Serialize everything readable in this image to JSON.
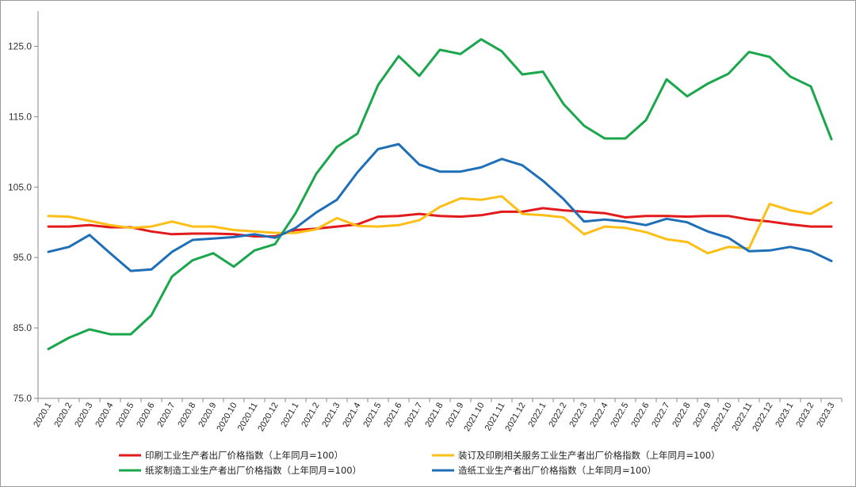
{
  "chart_data": {
    "type": "line",
    "title": "",
    "xlabel": "",
    "ylabel": "",
    "ylim": [
      75,
      130
    ],
    "yticks": [
      "75.0",
      "85.0",
      "95.0",
      "105.0",
      "115.0",
      "125.0"
    ],
    "grid": false,
    "legend_position": "bottom",
    "categories": [
      "2020.1",
      "2020.2",
      "2020.3",
      "2020.4",
      "2020.5",
      "2020.6",
      "2020.7",
      "2020.8",
      "2020.9",
      "2020.10",
      "2020.11",
      "2020.12",
      "2021.1",
      "2021.2",
      "2021.3",
      "2021.4",
      "2021.5",
      "2021.6",
      "2021.7",
      "2021.8",
      "2021.9",
      "2021.10",
      "2021.11",
      "2021.12",
      "2022.1",
      "2022.2",
      "2022.3",
      "2022.4",
      "2022.5",
      "2022.6",
      "2022.7",
      "2022.8",
      "2022.9",
      "2022.10",
      "2022.11",
      "2022.12",
      "2023.1",
      "2023.2",
      "2023.3"
    ],
    "series": [
      {
        "name": "印刷工业生产者出厂价格指数（上年同月=100）",
        "color": "#e31a1c",
        "values": [
          99.4,
          99.4,
          99.6,
          99.3,
          99.3,
          98.7,
          98.3,
          98.4,
          98.4,
          98.3,
          98.0,
          98.0,
          98.9,
          99.1,
          99.4,
          99.7,
          100.8,
          100.9,
          101.2,
          100.9,
          100.8,
          101.0,
          101.5,
          101.5,
          102.0,
          101.7,
          101.5,
          101.3,
          100.7,
          100.9,
          100.9,
          100.8,
          100.9,
          100.9,
          100.4,
          100.1,
          99.7,
          99.4,
          99.4
        ]
      },
      {
        "name": "装订及印刷相关服务工业生产者出厂价格指数（上年同月=100）",
        "color": "#fdbe16",
        "values": [
          100.9,
          100.8,
          100.2,
          99.6,
          99.2,
          99.4,
          100.1,
          99.4,
          99.4,
          98.9,
          98.7,
          98.5,
          98.5,
          99.0,
          100.6,
          99.5,
          99.4,
          99.6,
          100.3,
          102.2,
          103.4,
          103.2,
          103.7,
          101.2,
          101.0,
          100.7,
          98.3,
          99.4,
          99.2,
          98.6,
          97.6,
          97.2,
          95.6,
          96.5,
          96.3,
          102.6,
          101.7,
          101.2,
          102.8
        ]
      },
      {
        "name": "纸浆制造工业生产者出厂价格指数（上年同月=100）",
        "color": "#1aa64a",
        "values": [
          82.0,
          83.6,
          84.8,
          84.1,
          84.1,
          86.8,
          92.3,
          94.6,
          95.6,
          93.7,
          96.0,
          96.9,
          101.3,
          106.9,
          110.7,
          112.6,
          119.5,
          123.6,
          120.8,
          124.5,
          123.9,
          126.0,
          124.3,
          121.0,
          121.4,
          116.8,
          113.7,
          111.9,
          111.9,
          114.5,
          120.3,
          117.9,
          119.7,
          121.1,
          124.2,
          123.5,
          120.7,
          119.3,
          111.8
        ]
      },
      {
        "name": "造纸工业生产者出厂价格指数（上年同月=100）",
        "color": "#1f6fb8",
        "values": [
          95.8,
          96.5,
          98.2,
          95.6,
          93.1,
          93.3,
          95.8,
          97.5,
          97.7,
          97.9,
          98.3,
          97.8,
          99.2,
          101.4,
          103.2,
          107.1,
          110.4,
          111.1,
          108.2,
          107.2,
          107.2,
          107.8,
          109.0,
          108.1,
          105.9,
          103.3,
          100.1,
          100.4,
          100.1,
          99.6,
          100.5,
          100.0,
          98.7,
          97.8,
          95.9,
          96.0,
          96.5,
          95.9,
          94.5
        ]
      }
    ]
  }
}
